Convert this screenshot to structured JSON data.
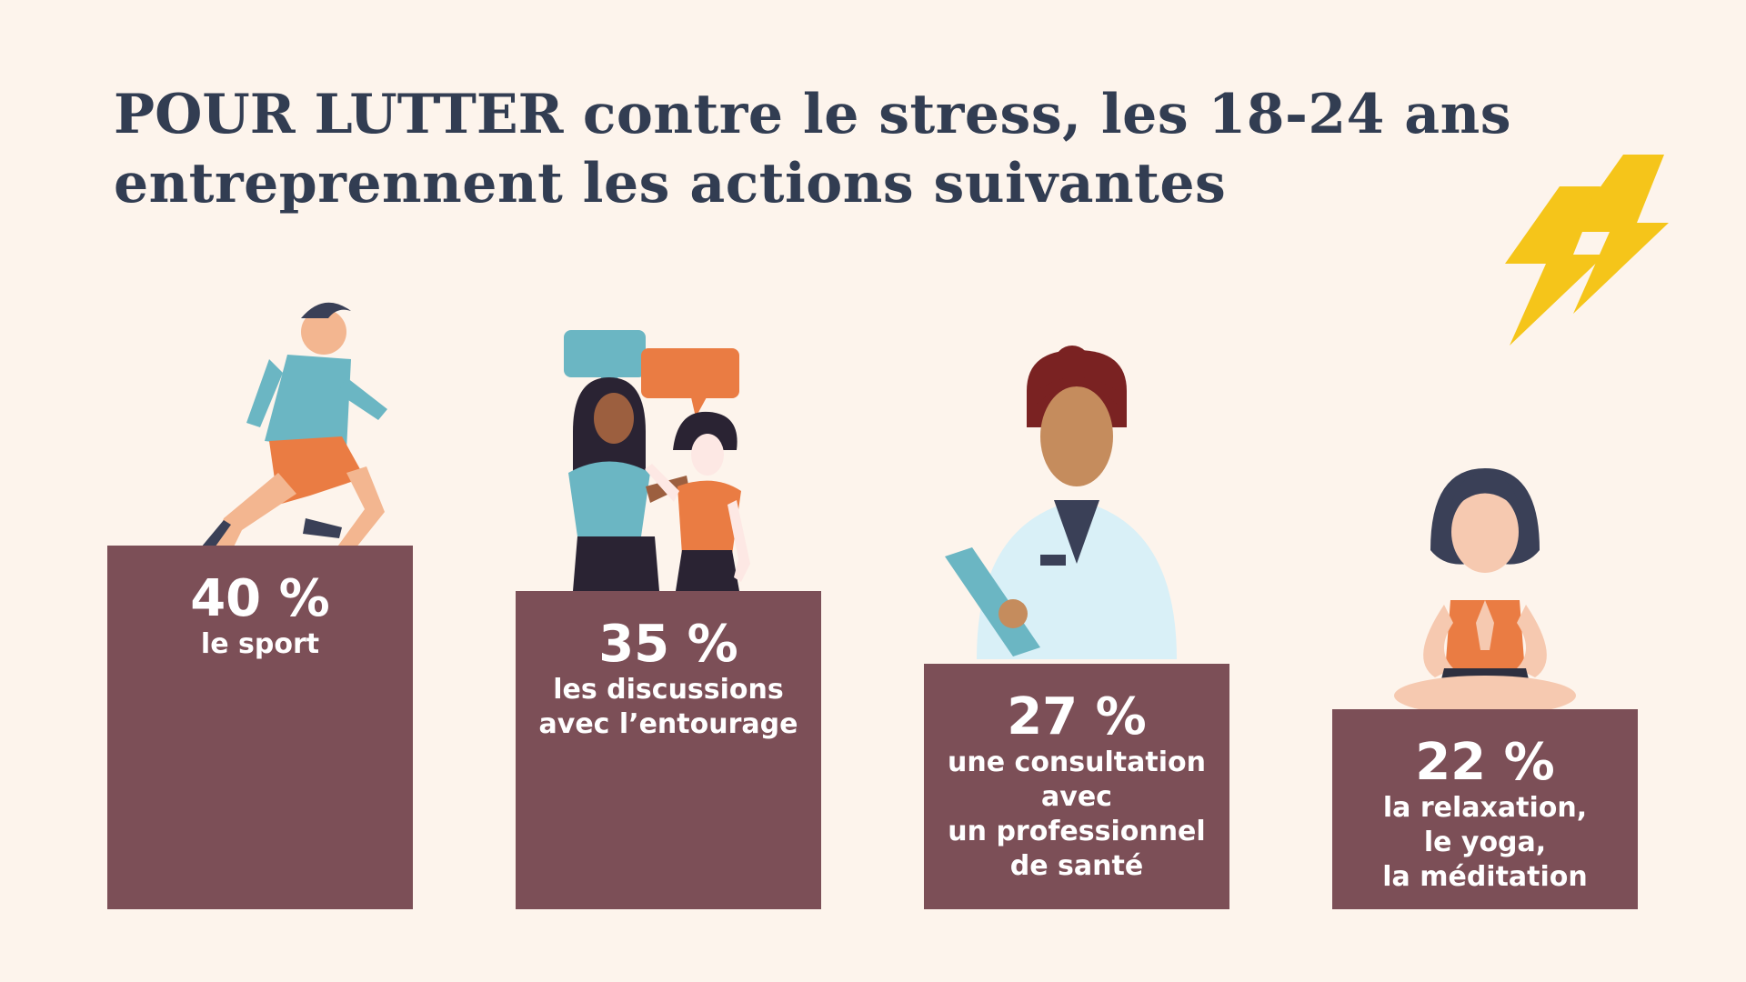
{
  "title": {
    "line1_emphasis": "POUR LUTTER",
    "line1_rest": " contre le stress, les 18-24 ans",
    "line2": "entreprennent les actions suivantes"
  },
  "colors": {
    "background": "#fdf4ec",
    "title": "#323d52",
    "bar": "#7c4f57",
    "bar_text": "#ffffff",
    "lightning": "#f5c51a"
  },
  "chart_data": {
    "type": "bar",
    "categories": [
      "le sport",
      "les discussions avec l’entourage",
      "une consultation avec un professionnel de santé",
      "la relaxation, le yoga, la méditation"
    ],
    "values": [
      40,
      35,
      27,
      22
    ],
    "unit": "%",
    "value_labels": [
      "40 %",
      "35 %",
      "27 %",
      "22 %"
    ],
    "category_lines": [
      [
        "le sport"
      ],
      [
        "les discussions",
        "avec l’entourage"
      ],
      [
        "une consultation",
        "avec",
        "un professionnel",
        "de santé"
      ],
      [
        "la relaxation,",
        "le yoga,",
        "la méditation"
      ]
    ],
    "illustrations": [
      "runner-illustration",
      "conversation-illustration",
      "doctor-illustration",
      "meditation-illustration"
    ],
    "grid": false,
    "legend": "none"
  }
}
